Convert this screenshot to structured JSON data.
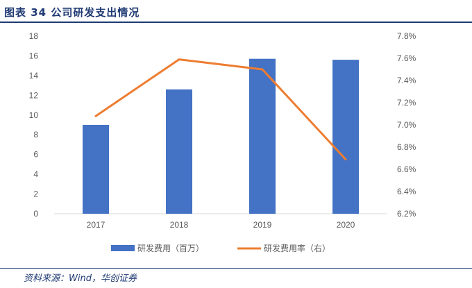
{
  "figure": {
    "title": "图表 34   公司研发支出情况",
    "source": "资料来源：Wind，华创证券"
  },
  "chart_data": {
    "type": "bar",
    "categories": [
      "2017",
      "2018",
      "2019",
      "2020"
    ],
    "series": [
      {
        "name": "研发费用（百万）",
        "type": "bar",
        "axis": "left",
        "values": [
          9.0,
          12.6,
          15.7,
          15.6
        ],
        "color": "#4472c4"
      },
      {
        "name": "研发费用率（右）",
        "type": "line",
        "axis": "right",
        "values": [
          7.08,
          7.59,
          7.5,
          6.69
        ],
        "color": "#ed7d31"
      }
    ],
    "y_left": {
      "ylim": [
        0,
        18
      ],
      "ticks": [
        "0",
        "2",
        "4",
        "6",
        "8",
        "10",
        "12",
        "14",
        "16",
        "18"
      ]
    },
    "y_right": {
      "ylim": [
        6.2,
        7.8
      ],
      "ticks": [
        "6.2%",
        "6.4%",
        "6.6%",
        "6.8%",
        "7.0%",
        "7.2%",
        "7.4%",
        "7.6%",
        "7.8%"
      ]
    },
    "grid": false,
    "legend_position": "bottom"
  }
}
